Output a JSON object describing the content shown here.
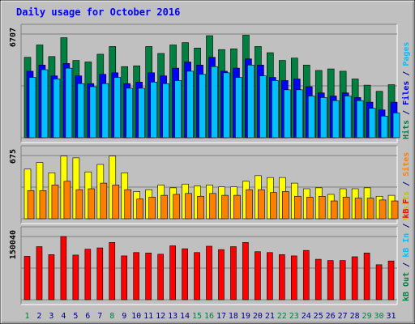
{
  "chart_data": {
    "type": "bar",
    "title": "Daily usage for October 2016",
    "x": [
      "1",
      "2",
      "3",
      "4",
      "5",
      "6",
      "7",
      "8",
      "9",
      "10",
      "11",
      "12",
      "13",
      "14",
      "15",
      "16",
      "17",
      "18",
      "19",
      "20",
      "21",
      "22",
      "23",
      "24",
      "25",
      "26",
      "27",
      "28",
      "29",
      "30",
      "31"
    ],
    "weekend_days": [
      "1",
      "8",
      "15",
      "16",
      "22",
      "23",
      "29",
      "30"
    ],
    "panels": [
      {
        "id": "requests",
        "max_label": "6707",
        "ymax": 6707,
        "axis_labels": [
          {
            "text": "Hits",
            "color": "#008040"
          },
          {
            "text": "/",
            "color": "#000080"
          },
          {
            "text": "Files",
            "color": "#0000ff"
          },
          {
            "text": "/",
            "color": "#000080"
          },
          {
            "text": "Pages",
            "color": "#00c0ff"
          }
        ],
        "series": [
          {
            "name": "Hits",
            "color": "#008040",
            "values": [
              5200,
              6000,
              5250,
              6470,
              5000,
              4900,
              5400,
              5900,
              4600,
              4650,
              5900,
              5450,
              6000,
              6150,
              5800,
              6600,
              5700,
              5750,
              6630,
              5900,
              5500,
              5000,
              5150,
              4700,
              4350,
              4450,
              4300,
              3800,
              3400,
              3000,
              3430
            ]
          },
          {
            "name": "Files",
            "color": "#0000ff",
            "values": [
              4300,
              4700,
              4000,
              4800,
              4000,
              3500,
              4100,
              4200,
              3500,
              3600,
              4200,
              4000,
              4500,
              4900,
              4700,
              5200,
              4300,
              4500,
              5100,
              4700,
              3900,
              3700,
              3800,
              3300,
              2900,
              2700,
              2900,
              2600,
              2300,
              1800,
              2300
            ]
          },
          {
            "name": "Pages",
            "color": "#00c0ff",
            "values": [
              3900,
              4400,
              3800,
              4500,
              3500,
              3300,
              3500,
              3900,
              3200,
              3200,
              3600,
              3500,
              3700,
              4300,
              4100,
              4600,
              4200,
              3900,
              4700,
              4000,
              3700,
              3100,
              3100,
              2700,
              2600,
              2400,
              2700,
              2400,
              1900,
              1400,
              1600
            ]
          }
        ]
      },
      {
        "id": "visits",
        "max_label": "675",
        "ymax": 675,
        "axis_labels": [
          {
            "text": "Visits",
            "color": "#c0c000"
          },
          {
            "text": "/",
            "color": "#000080"
          },
          {
            "text": "Sites",
            "color": "#ff8000"
          }
        ],
        "series": [
          {
            "name": "Visits",
            "color": "#ffff00",
            "values": [
              530,
              600,
              490,
              670,
              650,
              500,
              580,
              670,
              490,
              290,
              310,
              360,
              330,
              370,
              350,
              360,
              340,
              340,
              400,
              460,
              440,
              440,
              380,
              320,
              330,
              260,
              320,
              320,
              330,
              240,
              250
            ]
          },
          {
            "name": "Sites",
            "color": "#ff8000",
            "values": [
              300,
              300,
              360,
              400,
              310,
              320,
              380,
              360,
              310,
              210,
              230,
              250,
              260,
              270,
              240,
              270,
              250,
              250,
              310,
              310,
              280,
              290,
              240,
              230,
              240,
              190,
              230,
              220,
              220,
              200,
              190
            ]
          }
        ]
      },
      {
        "id": "kbytes",
        "max_label": "150040",
        "ymax": 150040,
        "axis_labels": [
          {
            "text": "kB Out",
            "color": "#008040"
          },
          {
            "text": "/",
            "color": "#000080"
          },
          {
            "text": "kB In",
            "color": "#00c0ff"
          },
          {
            "text": "/",
            "color": "#000080"
          },
          {
            "text": "kB F",
            "color": "#ff0000"
          }
        ],
        "series": [
          {
            "name": "kB F",
            "color": "#ff0000",
            "values": [
              103000,
              126000,
              107000,
              150040,
              106000,
              120000,
              123000,
              136000,
              104000,
              112000,
              111000,
              108000,
              128000,
              121000,
              112000,
              127000,
              119000,
              126000,
              136000,
              114000,
              112000,
              107000,
              104000,
              117000,
              96000,
              93000,
              93000,
              102000,
              111000,
              83000,
              92000
            ]
          }
        ]
      }
    ]
  }
}
